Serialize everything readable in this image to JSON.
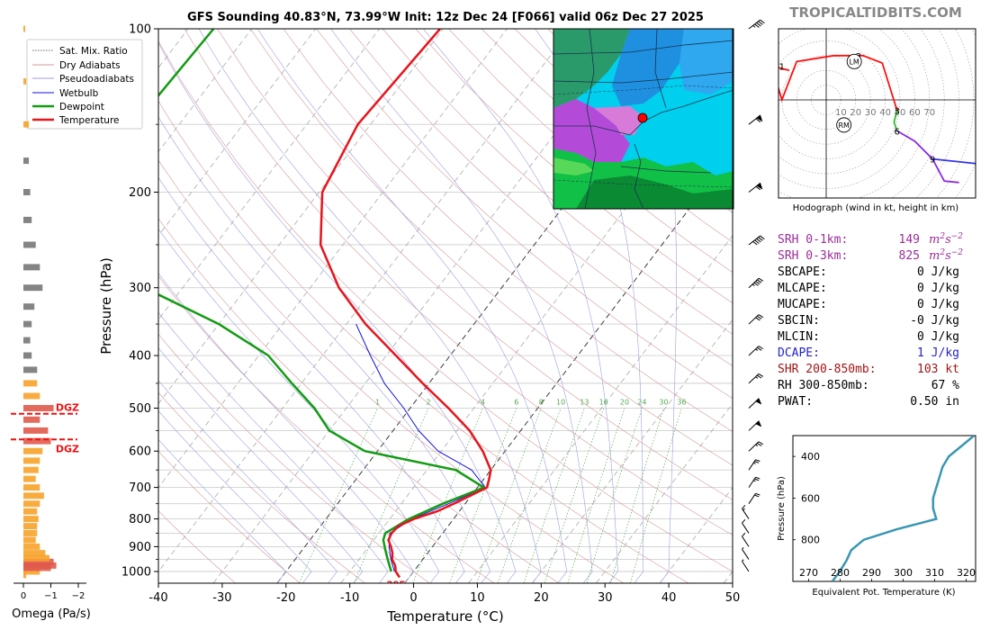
{
  "header": {
    "title": "GFS Sounding 40.83°N, 73.99°W Init: 12z Dec 24 [F066] valid 06z Dec 27 2025",
    "brand": "TROPICALTIDBITS.COM"
  },
  "colors": {
    "temperature": "#e8141c",
    "dewpoint": "#139b13",
    "wetbulb": "#1010e0",
    "dry_adiabat": "#d49a9a",
    "pseudoadiabat": "#9f9fe0",
    "mix_ratio": "#55aa55",
    "srh": "#9b2c9b",
    "dcape": "#2222cc",
    "shear": "#a31414",
    "thetae": "#3a97b1",
    "omega_orange": "#f7a32b",
    "omega_red": "#e05a4b",
    "omega_gray": "#777777"
  },
  "legend": [
    {
      "label": "Sat. Mix. Ratio",
      "style": "mix"
    },
    {
      "label": "Dry Adiabats",
      "style": "dry"
    },
    {
      "label": "Pseudoadiabats",
      "style": "pseudo"
    },
    {
      "label": "Wetbulb",
      "style": "wetbulb"
    },
    {
      "label": "Dewpoint",
      "style": "dewpoint"
    },
    {
      "label": "Temperature",
      "style": "temperature"
    }
  ],
  "chart_data": [
    {
      "type": "line",
      "name": "skewt",
      "xlabel": "Temperature (°C)",
      "ylabel": "Pressure (hPa)",
      "xlim": [
        -40,
        50
      ],
      "ylim": [
        1050,
        100
      ],
      "log_y": true,
      "skew": true,
      "x_ticks": [
        -40,
        -30,
        -20,
        -10,
        0,
        10,
        20,
        30,
        40,
        50
      ],
      "y_ticks": [
        100,
        200,
        300,
        400,
        500,
        600,
        700,
        800,
        900,
        1000
      ],
      "surface_label": "29F",
      "mix_ratio_labels": [
        "1",
        "2",
        "4",
        "6",
        "8",
        "10",
        "13",
        "16",
        "20",
        "24",
        "30",
        "36"
      ],
      "series": [
        {
          "name": "Temperature",
          "p": [
            1025,
            1000,
            975,
            950,
            925,
            900,
            875,
            850,
            825,
            800,
            775,
            750,
            700,
            675,
            650,
            600,
            550,
            500,
            450,
            400,
            350,
            300,
            250,
            200,
            150,
            100
          ],
          "t": [
            -1.5,
            -2.8,
            -3.6,
            -4.8,
            -5.5,
            -6.5,
            -7.7,
            -8.0,
            -7.8,
            -6.2,
            -3.5,
            -1.8,
            1.5,
            0.8,
            0.0,
            -3.5,
            -8.0,
            -14.0,
            -21.0,
            -28.5,
            -37.0,
            -45.5,
            -53.5,
            -59.5,
            -62.0,
            -60.5
          ]
        },
        {
          "name": "Dewpoint",
          "p": [
            1000,
            950,
            925,
            900,
            875,
            850,
            800,
            750,
            700,
            650,
            600,
            550,
            500,
            450,
            400,
            350,
            300,
            250,
            200,
            150,
            100
          ],
          "t": [
            -3.5,
            -5.5,
            -6.5,
            -7.5,
            -8.5,
            -9.0,
            -7.0,
            -3.5,
            1.0,
            -5.5,
            -22.0,
            -30.0,
            -35.0,
            -41.5,
            -48.5,
            -60.0,
            -76.0,
            -85.0,
            -90.5,
            -97.0,
            -96.0
          ]
        },
        {
          "name": "Wetbulb",
          "p": [
            1000,
            950,
            900,
            850,
            800,
            750,
            700,
            650,
            600,
            550,
            500,
            450,
            400,
            350
          ],
          "t": [
            -3.0,
            -5.0,
            -6.8,
            -8.3,
            -6.5,
            -2.6,
            1.2,
            -3.0,
            -10.5,
            -16.0,
            -21.0,
            -27.0,
            -32.5,
            -38.5
          ]
        }
      ]
    },
    {
      "type": "bar",
      "name": "omega",
      "xlabel": "Omega (Pa/s)",
      "x_ticks": [
        "0",
        "−1",
        "−2"
      ],
      "xlim": [
        0.2,
        -2.4
      ],
      "dgz_label": "DGZ",
      "dgz_levels": [
        512,
        571
      ],
      "p": [
        1015,
        1000,
        985,
        975,
        960,
        945,
        925,
        900,
        875,
        850,
        825,
        800,
        775,
        750,
        725,
        700,
        675,
        650,
        625,
        600,
        575,
        550,
        525,
        500,
        475,
        450,
        425,
        400,
        375,
        350,
        325,
        300,
        275,
        250,
        225,
        200,
        175,
        150,
        125,
        100
      ],
      "omega": [
        -0.1,
        -0.6,
        -1.0,
        -1.2,
        -1.1,
        -0.95,
        -0.8,
        -0.6,
        -0.45,
        -0.5,
        -0.5,
        -0.55,
        -0.5,
        -0.6,
        -0.75,
        -0.6,
        -0.45,
        -0.55,
        -0.6,
        -0.7,
        -1.0,
        -0.9,
        -0.6,
        -1.1,
        -0.6,
        -0.5,
        -0.5,
        -0.3,
        -0.25,
        -0.3,
        -0.4,
        -0.7,
        -0.6,
        -0.45,
        -0.3,
        -0.25,
        -0.2,
        -0.2,
        -0.1,
        -0.05
      ]
    },
    {
      "type": "line",
      "name": "hodograph",
      "xlabel": "Hodograph (wind in kt, height in km)",
      "ring_labels": [
        "10",
        "20",
        "30",
        "40",
        "50",
        "60",
        "70"
      ],
      "labels": [
        {
          "text": "1",
          "u": -30,
          "v": 23
        },
        {
          "text": "2",
          "u": 22,
          "v": 30
        },
        {
          "text": "3",
          "u": 48,
          "v": -7
        },
        {
          "text": "6",
          "u": 48,
          "v": -21
        },
        {
          "text": "9",
          "u": 72,
          "v": -40
        },
        {
          "text": "LM",
          "u": 19,
          "v": 26
        },
        {
          "text": "RM",
          "u": 12,
          "v": -17
        }
      ],
      "series": [
        {
          "name": "0-3 km",
          "u": [
            -25,
            -33,
            -33,
            -30,
            -20,
            5,
            15,
            25,
            38,
            48
          ],
          "v": [
            20,
            22,
            10,
            0,
            26,
            30,
            30,
            30,
            25,
            -7
          ]
        },
        {
          "name": "3-6 km",
          "u": [
            48,
            46,
            48
          ],
          "v": [
            -7,
            -15,
            -21
          ]
        },
        {
          "name": "6-9 km",
          "u": [
            48,
            60,
            72,
            80,
            90
          ],
          "v": [
            -21,
            -28,
            -40,
            -55,
            -56
          ]
        }
      ]
    },
    {
      "type": "line",
      "name": "theta_e",
      "xlabel": "Equivalent Pot. Temperature (K)",
      "ylabel": "Pressure (hPa)",
      "xlim": [
        265,
        323
      ],
      "ylim": [
        1000,
        300
      ],
      "x_ticks": [
        270,
        280,
        290,
        300,
        310,
        320
      ],
      "y_ticks": [
        400,
        600,
        800
      ],
      "p": [
        1000,
        960,
        925,
        900,
        850,
        800,
        750,
        700,
        650,
        600,
        550,
        500,
        450,
        400,
        350,
        300
      ],
      "theta_e": [
        277.5,
        279.5,
        281,
        282,
        283.5,
        287.5,
        298,
        310.5,
        309.5,
        309.5,
        310.5,
        311.5,
        312.5,
        314.5,
        318.5,
        322.5
      ]
    }
  ],
  "stats": [
    {
      "label": "SRH 0-1km:",
      "value": "149",
      "unit": "m2s-2",
      "color": "srh"
    },
    {
      "label": "SRH 0-3km:",
      "value": "825",
      "unit": "m2s-2",
      "color": "srh"
    },
    {
      "label": "SBCAPE:",
      "value": "0 J/kg",
      "color": ""
    },
    {
      "label": "MLCAPE:",
      "value": "0 J/kg",
      "color": ""
    },
    {
      "label": "MUCAPE:",
      "value": "0 J/kg",
      "color": ""
    },
    {
      "label": "SBCIN:",
      "value": "-0 J/kg",
      "color": ""
    },
    {
      "label": "MLCIN:",
      "value": "0 J/kg",
      "color": ""
    },
    {
      "label": "DCAPE:",
      "value": "1 J/kg",
      "color": "dcape"
    },
    {
      "label": "SHR 200-850mb:",
      "value": "103 kt",
      "color": "shear"
    },
    {
      "label": "RH 300-850mb:",
      "value": "67 %",
      "color": ""
    },
    {
      "label": "PWAT:",
      "value": "0.50 in",
      "color": ""
    }
  ]
}
